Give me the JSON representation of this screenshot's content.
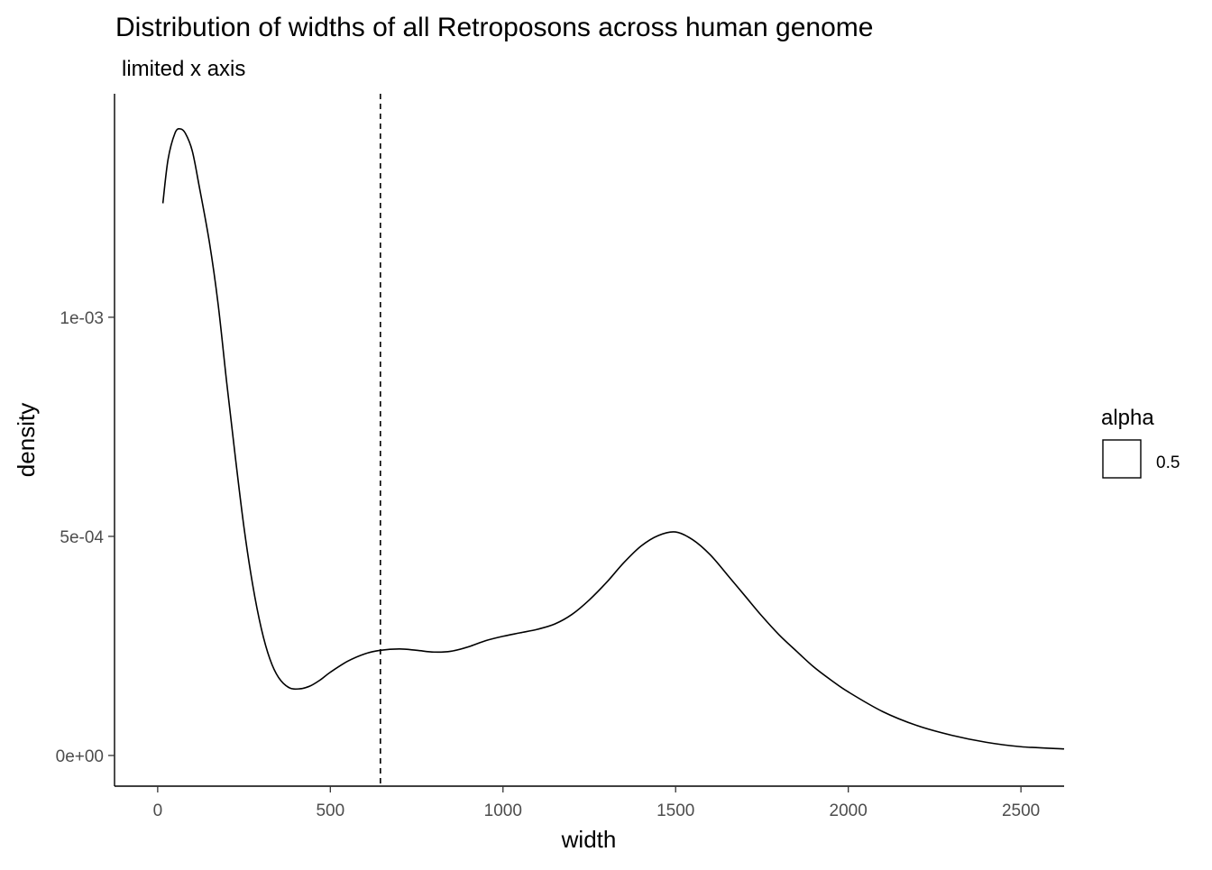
{
  "chart_data": {
    "type": "line",
    "title": "Distribution of widths of all Retroposons across human genome",
    "subtitle": "limited x axis",
    "xlabel": "width",
    "ylabel": "density",
    "xlim": [
      -125,
      2625
    ],
    "ylim": [
      -7e-05,
      0.00151
    ],
    "x_ticks": [
      0,
      500,
      1000,
      1500,
      2000,
      2500
    ],
    "x_tick_labels": [
      "0",
      "500",
      "1000",
      "1500",
      "2000",
      "2500"
    ],
    "y_ticks": [
      0,
      0.0005,
      0.001
    ],
    "y_tick_labels": [
      "0e+00",
      "5e-04",
      "1e-03"
    ],
    "grid": false,
    "vline": {
      "x": 645,
      "style": "dashed"
    },
    "legend": {
      "title": "alpha",
      "entries": [
        "0.5"
      ],
      "position": "right"
    },
    "series": [
      {
        "x": [
          15,
          30,
          50,
          65,
          80,
          100,
          120,
          150,
          175,
          200,
          225,
          250,
          275,
          300,
          325,
          350,
          380,
          410,
          440,
          470,
          500,
          550,
          600,
          645,
          700,
          750,
          800,
          850,
          900,
          950,
          1000,
          1050,
          1100,
          1150,
          1200,
          1250,
          1300,
          1350,
          1400,
          1450,
          1500,
          1550,
          1600,
          1650,
          1700,
          1750,
          1800,
          1850,
          1900,
          1950,
          2000,
          2100,
          2200,
          2300,
          2400,
          2500,
          2625
        ],
        "y": [
          0.00126,
          0.00136,
          0.00142,
          0.00143,
          0.00142,
          0.00138,
          0.0013,
          0.00117,
          0.00103,
          0.00085,
          0.00068,
          0.00052,
          0.00039,
          0.00029,
          0.00022,
          0.000178,
          0.000155,
          0.000152,
          0.000158,
          0.000172,
          0.00019,
          0.000215,
          0.000232,
          0.00024,
          0.000243,
          0.00024,
          0.000236,
          0.000238,
          0.000248,
          0.000262,
          0.000272,
          0.00028,
          0.000288,
          0.0003,
          0.000322,
          0.000355,
          0.000395,
          0.00044,
          0.000478,
          0.000502,
          0.00051,
          0.000492,
          0.000458,
          0.000412,
          0.000365,
          0.000318,
          0.000275,
          0.000238,
          0.000202,
          0.000172,
          0.000145,
          0.0001,
          6.8e-05,
          4.6e-05,
          3e-05,
          2e-05,
          1.5e-05
        ]
      }
    ]
  }
}
